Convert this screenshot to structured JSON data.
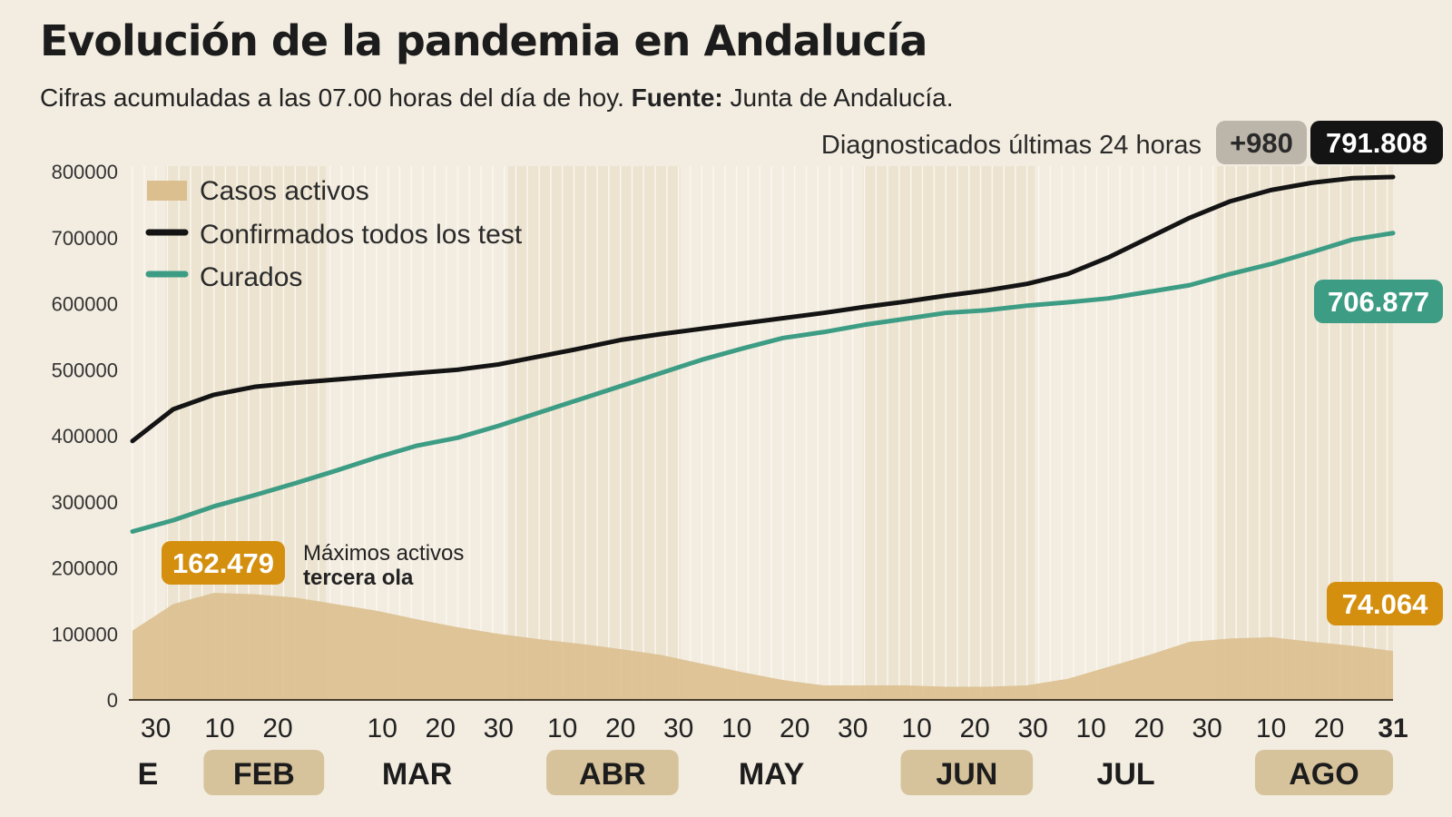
{
  "title": "Evolución de la pandemia en Andalucía",
  "subtitle": {
    "text": "Cifras acumuladas a las 07.00 horas del día de hoy.",
    "source_label": "Fuente:",
    "source": "Junta de Andalucía."
  },
  "colors": {
    "background": "#f3ede1",
    "active": "#dcbf8e",
    "confirmed": "#141414",
    "cured": "#3d9c84",
    "active_label": "#d48f0f",
    "month_band": "#d6c39b",
    "delta_badge": "#bcb6aa"
  },
  "chart_data": {
    "type": "line",
    "ylim": [
      0,
      800000
    ],
    "yticks": [
      "0",
      "100000",
      "200000",
      "300000",
      "400000",
      "500000",
      "600000",
      "700000",
      "800000"
    ],
    "xlim": [
      "01-26",
      "08-31"
    ],
    "legend": [
      "Casos activos",
      "Confirmados todos los test",
      "Curados"
    ],
    "legend_position": "top-left",
    "x": [
      "01-26",
      "02-02",
      "02-09",
      "02-16",
      "02-23",
      "03-02",
      "03-09",
      "03-16",
      "03-23",
      "03-30",
      "04-06",
      "04-13",
      "04-20",
      "04-27",
      "05-04",
      "05-11",
      "05-18",
      "05-25",
      "06-01",
      "06-08",
      "06-15",
      "06-22",
      "06-29",
      "07-06",
      "07-13",
      "07-20",
      "07-27",
      "08-03",
      "08-10",
      "08-17",
      "08-24",
      "08-31"
    ],
    "series": [
      {
        "name": "Casos activos",
        "type": "area",
        "values": [
          105000,
          145000,
          162000,
          160000,
          155000,
          145000,
          135000,
          122000,
          110000,
          100000,
          92000,
          85000,
          77000,
          68000,
          55000,
          42000,
          30000,
          22000,
          22000,
          22000,
          20000,
          20000,
          22000,
          32000,
          50000,
          68000,
          88000,
          93000,
          95000,
          88000,
          82000,
          74064
        ]
      },
      {
        "name": "Confirmados todos los test",
        "values": [
          392000,
          440000,
          462000,
          474000,
          480000,
          485000,
          490000,
          495000,
          500000,
          508000,
          520000,
          532000,
          545000,
          554000,
          562000,
          570000,
          578000,
          586000,
          595000,
          603000,
          612000,
          620000,
          630000,
          645000,
          670000,
          700000,
          730000,
          755000,
          772000,
          783000,
          790000,
          791808
        ]
      },
      {
        "name": "Curados",
        "values": [
          255000,
          272000,
          293000,
          310000,
          328000,
          347000,
          367000,
          385000,
          397000,
          415000,
          435000,
          455000,
          475000,
          495000,
          515000,
          532000,
          548000,
          557000,
          568000,
          577000,
          586000,
          590000,
          597000,
          602000,
          608000,
          618000,
          628000,
          645000,
          660000,
          678000,
          697000,
          706877
        ]
      }
    ],
    "xticks": [
      {
        "date": "01-30",
        "label": "30"
      },
      {
        "date": "02-10",
        "label": "10"
      },
      {
        "date": "02-20",
        "label": "20"
      },
      {
        "date": "03-10",
        "label": "10"
      },
      {
        "date": "03-20",
        "label": "20"
      },
      {
        "date": "03-30",
        "label": "30"
      },
      {
        "date": "04-10",
        "label": "10"
      },
      {
        "date": "04-20",
        "label": "20"
      },
      {
        "date": "04-30",
        "label": "30"
      },
      {
        "date": "05-10",
        "label": "10"
      },
      {
        "date": "05-20",
        "label": "20"
      },
      {
        "date": "05-30",
        "label": "30"
      },
      {
        "date": "06-10",
        "label": "10"
      },
      {
        "date": "06-20",
        "label": "20"
      },
      {
        "date": "06-30",
        "label": "30"
      },
      {
        "date": "07-10",
        "label": "10"
      },
      {
        "date": "07-20",
        "label": "20"
      },
      {
        "date": "07-30",
        "label": "30"
      },
      {
        "date": "08-10",
        "label": "10"
      },
      {
        "date": "08-20",
        "label": "20"
      },
      {
        "date": "08-31",
        "label": "31"
      }
    ],
    "months": [
      {
        "label": "E",
        "start": "01-26",
        "end": "01-31",
        "band": false
      },
      {
        "label": "FEB",
        "start": "02-01",
        "end": "02-28",
        "band": true
      },
      {
        "label": "MAR",
        "start": "03-01",
        "end": "03-31",
        "band": false
      },
      {
        "label": "ABR",
        "start": "04-01",
        "end": "04-30",
        "band": true
      },
      {
        "label": "MAY",
        "start": "05-01",
        "end": "05-31",
        "band": false
      },
      {
        "label": "JUN",
        "start": "06-01",
        "end": "06-30",
        "band": true
      },
      {
        "label": "JUL",
        "start": "07-01",
        "end": "07-31",
        "band": false
      },
      {
        "label": "AGO",
        "start": "08-01",
        "end": "08-31",
        "band": true
      }
    ],
    "annotations": {
      "peak_value": "162.479",
      "peak_date": "02-09",
      "peak_text_1": "Máximos activos",
      "peak_text_2": "tercera ola",
      "active_last": "74.064",
      "cured_last": "706.877",
      "confirmed_last": "791.808",
      "delta_label": "Diagnosticados últimas 24 horas",
      "delta": "+980"
    }
  }
}
